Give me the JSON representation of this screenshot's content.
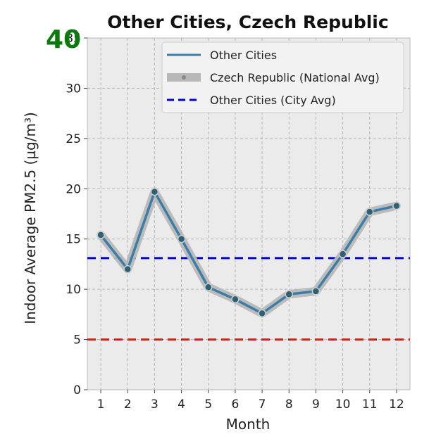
{
  "big_number": {
    "text": "40",
    "color": "#0a7a0a"
  },
  "chart_data": {
    "type": "line",
    "title": "Other Cities, Czech Republic",
    "xlabel": "Month",
    "ylabel": "Indoor Average PM2.5 (µg/m³)",
    "x": [
      1,
      2,
      3,
      4,
      5,
      6,
      7,
      8,
      9,
      10,
      11,
      12
    ],
    "xlim": [
      0.5,
      12.5
    ],
    "ylim": [
      0,
      35
    ],
    "yticks": [
      0,
      5,
      10,
      15,
      20,
      25,
      30,
      35
    ],
    "grid": true,
    "legend_position": "top-right",
    "series": [
      {
        "name": "Other Cities",
        "values": [
          15.4,
          12.0,
          19.7,
          15.0,
          10.2,
          9.0,
          7.6,
          9.5,
          9.8,
          13.5,
          17.7,
          18.3
        ],
        "color": "#3a7ea8"
      },
      {
        "name": "Czech Republic (National Avg)",
        "values": [
          15.4,
          12.0,
          19.7,
          15.0,
          10.2,
          9.0,
          7.6,
          9.5,
          9.8,
          13.5,
          17.7,
          18.3
        ],
        "color": "#b8b8b8"
      }
    ],
    "reference_lines": [
      {
        "name": "Other Cities (City Avg)",
        "value": 13.1,
        "color": "#0000dd",
        "style": "dashed"
      },
      {
        "name": "",
        "value": 5,
        "color": "#ee1111",
        "style": "dashed"
      }
    ]
  }
}
